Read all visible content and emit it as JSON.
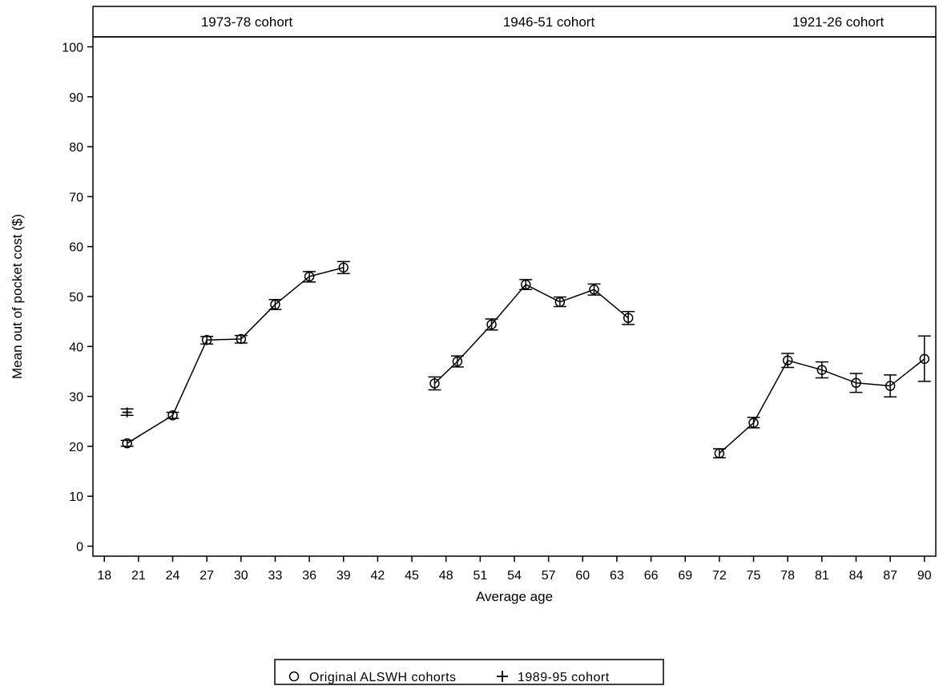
{
  "chart_data": {
    "type": "scatter",
    "panels": [
      "1973-78 cohort",
      "1946-51 cohort",
      "1921-26 cohort"
    ],
    "xlabel": "Average age",
    "ylabel": "Mean out of pocket cost ($)",
    "xlim": [
      17,
      91
    ],
    "ylim": [
      -2,
      102
    ],
    "xticks": [
      18,
      21,
      24,
      27,
      30,
      33,
      36,
      39,
      42,
      45,
      48,
      51,
      54,
      57,
      60,
      63,
      66,
      69,
      72,
      75,
      78,
      81,
      84,
      87,
      90
    ],
    "yticks": [
      0,
      10,
      20,
      30,
      40,
      50,
      60,
      70,
      80,
      90,
      100
    ],
    "grid": false,
    "legend_position": "bottom",
    "series": [
      {
        "name": "Original ALSWH cohorts",
        "marker": "circle",
        "connected": true,
        "groups": [
          {
            "panel": "1973-78 cohort",
            "points": [
              {
                "x": 20,
                "y": 20.6,
                "lo": 20.0,
                "hi": 21.2
              },
              {
                "x": 24,
                "y": 26.2,
                "lo": 25.6,
                "hi": 26.8
              },
              {
                "x": 27,
                "y": 41.3,
                "lo": 40.5,
                "hi": 42.0
              },
              {
                "x": 30,
                "y": 41.5,
                "lo": 40.7,
                "hi": 42.2
              },
              {
                "x": 33,
                "y": 48.4,
                "lo": 47.4,
                "hi": 49.4
              },
              {
                "x": 36,
                "y": 54.0,
                "lo": 52.9,
                "hi": 55.0
              },
              {
                "x": 39,
                "y": 55.8,
                "lo": 54.6,
                "hi": 57.0
              }
            ]
          },
          {
            "panel": "1946-51 cohort",
            "points": [
              {
                "x": 47,
                "y": 32.6,
                "lo": 31.3,
                "hi": 33.9
              },
              {
                "x": 49,
                "y": 37.0,
                "lo": 35.9,
                "hi": 38.1
              },
              {
                "x": 52,
                "y": 44.4,
                "lo": 43.3,
                "hi": 45.5
              },
              {
                "x": 55,
                "y": 52.4,
                "lo": 51.4,
                "hi": 53.4
              },
              {
                "x": 58,
                "y": 48.9,
                "lo": 48.0,
                "hi": 49.9
              },
              {
                "x": 61,
                "y": 51.4,
                "lo": 50.3,
                "hi": 52.5
              },
              {
                "x": 64,
                "y": 45.7,
                "lo": 44.4,
                "hi": 47.0
              }
            ]
          },
          {
            "panel": "1921-26 cohort",
            "points": [
              {
                "x": 72,
                "y": 18.6,
                "lo": 17.7,
                "hi": 19.5
              },
              {
                "x": 75,
                "y": 24.7,
                "lo": 23.7,
                "hi": 25.8
              },
              {
                "x": 78,
                "y": 37.2,
                "lo": 35.8,
                "hi": 38.6
              },
              {
                "x": 81,
                "y": 35.3,
                "lo": 33.7,
                "hi": 36.9
              },
              {
                "x": 84,
                "y": 32.7,
                "lo": 30.8,
                "hi": 34.6
              },
              {
                "x": 87,
                "y": 32.1,
                "lo": 29.9,
                "hi": 34.3
              },
              {
                "x": 90,
                "y": 37.5,
                "lo": 33.0,
                "hi": 42.1
              }
            ]
          }
        ]
      },
      {
        "name": "1989-95 cohort",
        "marker": "plus",
        "connected": false,
        "groups": [
          {
            "panel": "1973-78 cohort",
            "points": [
              {
                "x": 20,
                "y": 26.8,
                "lo": 26.2,
                "hi": 27.5
              }
            ]
          }
        ]
      }
    ]
  }
}
